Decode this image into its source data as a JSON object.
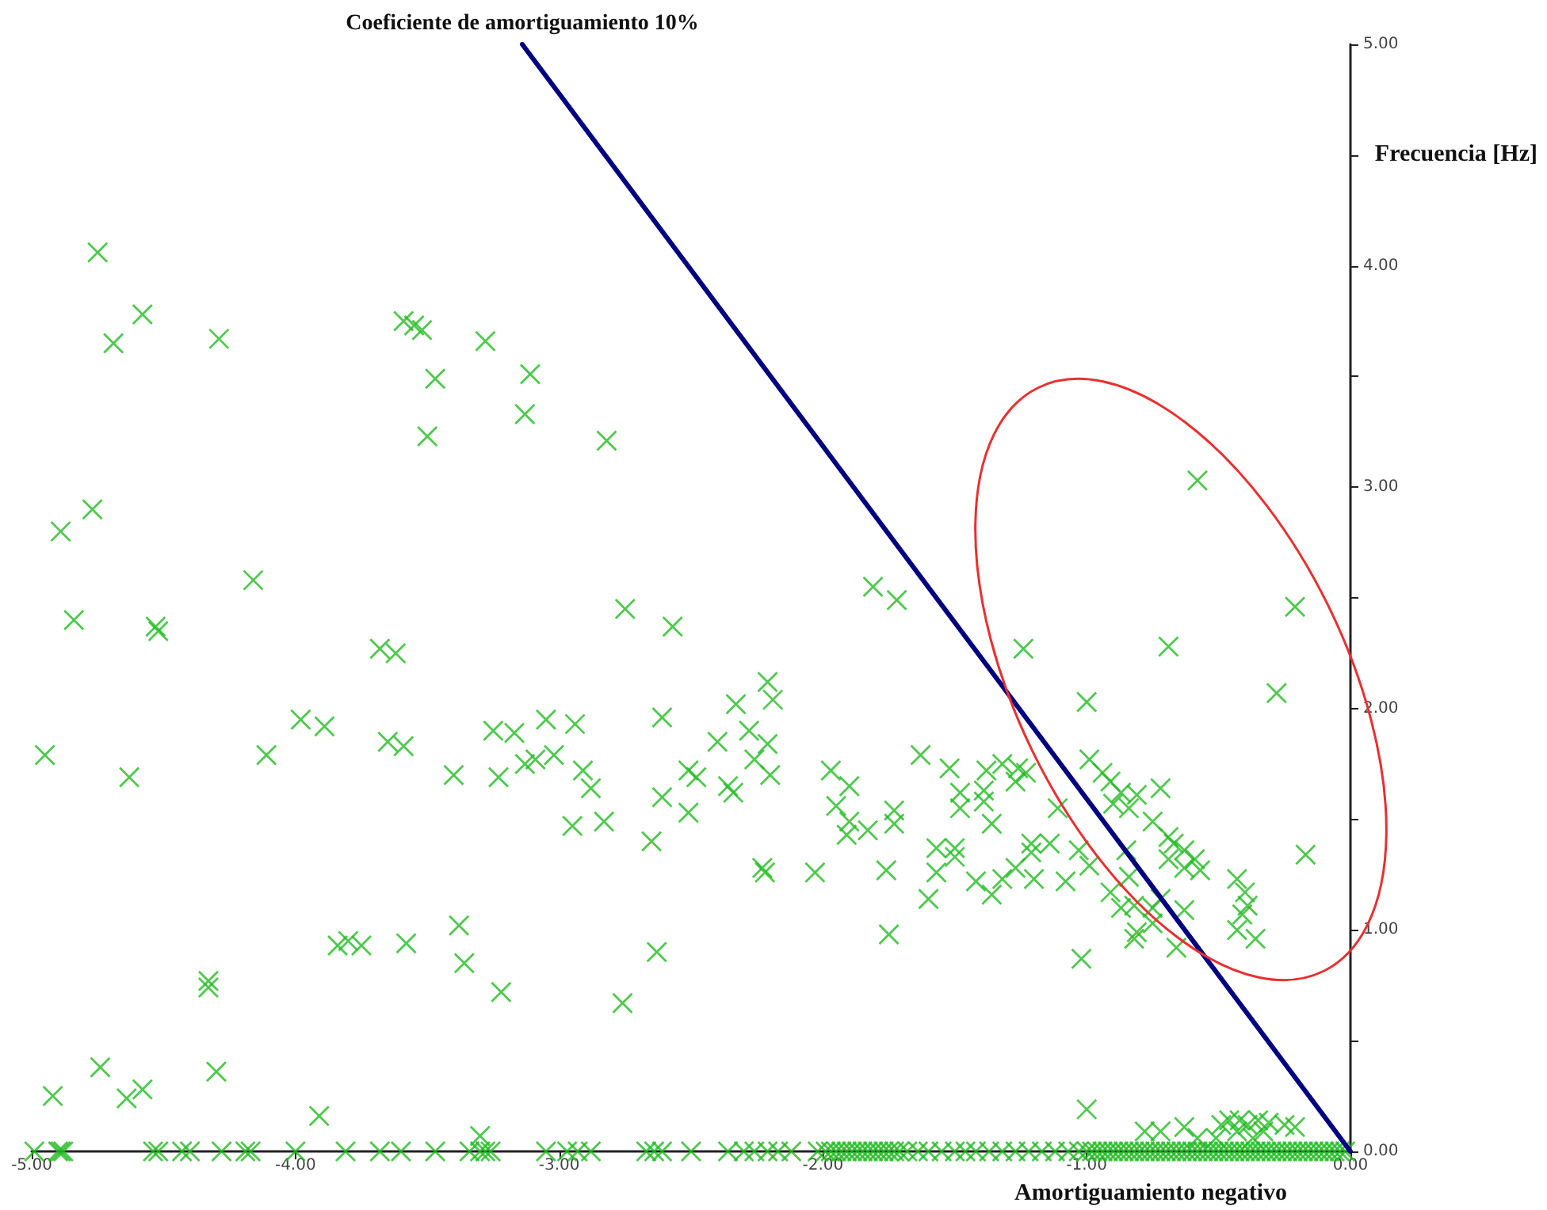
{
  "chart_data": {
    "type": "scatter",
    "xlabel": "Amortiguamiento negativo",
    "ylabel": "Frecuencia [Hz]",
    "xlim": [
      -5,
      0
    ],
    "ylim": [
      0,
      5
    ],
    "xticks": [
      {
        "value": -5,
        "label": "-5.00"
      },
      {
        "value": -4,
        "label": "-4.00"
      },
      {
        "value": -3,
        "label": "-3.00"
      },
      {
        "value": -2,
        "label": "-2.00"
      },
      {
        "value": -1,
        "label": "-1.00"
      },
      {
        "value": 0,
        "label": "0.00"
      }
    ],
    "yticks": [
      {
        "value": 0,
        "label": "0.00"
      },
      {
        "value": 0.5,
        "label": null
      },
      {
        "value": 1,
        "label": "1.00"
      },
      {
        "value": 1.5,
        "label": null
      },
      {
        "value": 2,
        "label": "2.00"
      },
      {
        "value": 2.5,
        "label": null
      },
      {
        "value": 3,
        "label": "3.00"
      },
      {
        "value": 3.5,
        "label": null
      },
      {
        "value": 4,
        "label": "4.00"
      },
      {
        "value": 4.5,
        "label": null
      },
      {
        "value": 5,
        "label": "5.00"
      }
    ],
    "grid": false,
    "legend": false,
    "marker": "cross",
    "series": [
      {
        "color": "#22bb22",
        "x": [
          -4.75,
          -4.69,
          -4.58,
          -4.29,
          -3.59,
          -3.55,
          -3.52,
          -3.47,
          -3.5,
          -3.28,
          -3.11,
          -3.13,
          -2.82,
          -4.77,
          -4.89,
          -4.84,
          -4.53,
          -4.52,
          -4.16,
          -3.68,
          -3.62,
          -4.95,
          -4.63,
          -4.11,
          -3.98,
          -3.89,
          -3.65,
          -3.59,
          -3.4,
          -3.23,
          -3.25,
          -3.17,
          -3.05,
          -2.94,
          -3.13,
          -3.09,
          -3.02,
          -2.91,
          -2.88,
          -2.95,
          -2.83,
          -2.65,
          -2.61,
          -2.61,
          -2.51,
          -2.51,
          -2.48,
          -2.4,
          -2.36,
          -2.34,
          -2.33,
          -2.28,
          -2.21,
          -2.19,
          -2.26,
          -2.21,
          -2.2,
          -2.23,
          -2.22,
          -2.03,
          -2.75,
          -2.57,
          -2.63,
          -2.76,
          -1.81,
          -1.72,
          -1.97,
          -1.9,
          -1.95,
          -1.9,
          -1.83,
          -1.91,
          -1.73,
          -1.73,
          -1.76,
          -1.75,
          -1.63,
          -1.52,
          -1.48,
          -1.48,
          -1.57,
          -1.57,
          -1.6,
          -1.5,
          -1.5,
          -1.38,
          -1.32,
          -1.27,
          -1.39,
          -1.39,
          -1.36,
          -1.42,
          -1.36,
          -1.32,
          -1.27,
          -0.58,
          -0.21,
          -1.24,
          -0.69,
          -0.28,
          -1.0,
          -0.17,
          -1.26,
          -1.23,
          -1.21,
          -1.21,
          -1.2,
          -1.08,
          -1.03,
          -0.99,
          -1.11,
          -1.14,
          -0.99,
          -0.94,
          -0.91,
          -0.87,
          -0.81,
          -0.72,
          -0.9,
          -0.84,
          -0.75,
          -0.69,
          -0.67,
          -0.63,
          -0.59,
          -0.69,
          -0.63,
          -0.57,
          -0.85,
          -0.91,
          -0.87,
          -0.82,
          -0.75,
          -0.72,
          -0.63,
          -0.81,
          -0.82,
          -0.75,
          -0.66,
          -0.43,
          -0.4,
          -0.39,
          -0.41,
          -0.43,
          -0.36,
          -1.02,
          -0.84,
          -4.92,
          -4.74,
          -4.64,
          -4.58,
          -4.3,
          -4.33,
          -4.33,
          -3.91,
          -3.84,
          -3.8,
          -3.75,
          -3.58,
          -3.38,
          -3.36,
          -3.22,
          -3.3,
          -1.0,
          -0.78,
          -0.72,
          -0.63,
          -0.58,
          -0.49,
          -0.46,
          -0.42,
          -0.39,
          -0.35,
          -0.31,
          -0.25,
          -0.21,
          -0.33,
          -0.37,
          -0.43,
          -0.51
        ],
        "values": [
          4.06,
          3.65,
          3.78,
          3.67,
          3.75,
          3.73,
          3.71,
          3.49,
          3.23,
          3.66,
          3.51,
          3.33,
          3.21,
          2.9,
          2.8,
          2.4,
          2.37,
          2.35,
          2.58,
          2.27,
          2.25,
          1.79,
          1.69,
          1.79,
          1.95,
          1.92,
          1.85,
          1.83,
          1.7,
          1.69,
          1.9,
          1.89,
          1.95,
          1.93,
          1.75,
          1.77,
          1.79,
          1.72,
          1.64,
          1.47,
          1.49,
          1.4,
          1.96,
          1.6,
          1.53,
          1.72,
          1.69,
          1.85,
          1.65,
          1.62,
          2.02,
          1.9,
          2.12,
          2.04,
          1.77,
          1.84,
          1.7,
          1.28,
          1.26,
          1.26,
          2.45,
          2.37,
          0.9,
          0.67,
          2.55,
          2.49,
          1.72,
          1.65,
          1.56,
          1.49,
          1.45,
          1.43,
          1.54,
          1.48,
          1.27,
          0.98,
          1.79,
          1.73,
          1.62,
          1.55,
          1.37,
          1.26,
          1.14,
          1.37,
          1.33,
          1.72,
          1.75,
          1.67,
          1.63,
          1.58,
          1.48,
          1.22,
          1.16,
          1.23,
          1.28,
          3.03,
          2.46,
          2.27,
          2.28,
          2.07,
          2.03,
          1.34,
          1.73,
          1.71,
          1.35,
          1.39,
          1.23,
          1.22,
          1.36,
          1.29,
          1.55,
          1.39,
          1.77,
          1.71,
          1.67,
          1.62,
          1.61,
          1.64,
          1.57,
          1.55,
          1.49,
          1.42,
          1.39,
          1.36,
          1.32,
          1.32,
          1.28,
          1.27,
          1.36,
          1.17,
          1.1,
          1.11,
          1.1,
          1.14,
          1.09,
          0.99,
          0.96,
          1.03,
          0.92,
          1.23,
          1.17,
          1.11,
          1.07,
          1.0,
          0.96,
          0.87,
          1.24,
          0.25,
          0.38,
          0.24,
          0.28,
          0.36,
          0.77,
          0.74,
          0.16,
          0.93,
          0.95,
          0.93,
          0.94,
          1.02,
          0.85,
          0.72,
          0.07,
          0.19,
          0.09,
          0.09,
          0.11,
          0.06,
          0.12,
          0.14,
          0.14,
          0.12,
          0.14,
          0.13,
          0.12,
          0.11,
          0.09,
          0.06,
          0.09,
          0.06
        ]
      },
      {
        "color": "#22bb22",
        "x": [
          -4.99,
          -4.9,
          -4.89,
          -4.88,
          -4.54,
          -4.52,
          -4.43,
          -4.4,
          -4.28,
          -4.19,
          -4.17,
          -4.0,
          -3.81,
          -3.68,
          -3.6,
          -3.47,
          -3.34,
          -3.3,
          -3.28,
          -3.26,
          -3.05,
          -2.97,
          -2.93,
          -2.88,
          -2.67,
          -2.64,
          -2.61,
          -2.5,
          -2.36,
          -2.3,
          -2.26,
          -2.21,
          -2.17,
          -2.12,
          -2.02,
          -1.99,
          -1.97,
          -1.95,
          -1.93,
          -1.91,
          -1.89,
          -1.87,
          -1.85,
          -1.83,
          -1.81,
          -1.79,
          -1.77,
          -1.75,
          -1.73,
          -1.71,
          -1.68,
          -1.64,
          -1.6,
          -1.55,
          -1.5,
          -1.46,
          -1.42,
          -1.37,
          -1.32,
          -1.27,
          -1.22,
          -1.17,
          -1.12,
          -1.07,
          -1.03,
          -1.0,
          -0.98,
          -0.96,
          -0.94,
          -0.92,
          -0.9,
          -0.88,
          -0.86,
          -0.84,
          -0.82,
          -0.8,
          -0.78,
          -0.76,
          -0.74,
          -0.72,
          -0.7,
          -0.68,
          -0.66,
          -0.64,
          -0.62,
          -0.6,
          -0.58,
          -0.56,
          -0.54,
          -0.52,
          -0.5,
          -0.48,
          -0.46,
          -0.44,
          -0.42,
          -0.4,
          -0.38,
          -0.36,
          -0.34,
          -0.32,
          -0.3,
          -0.28,
          -0.26,
          -0.24,
          -0.22,
          -0.2,
          -0.18,
          -0.16,
          -0.14,
          -0.12,
          -0.1,
          -0.08,
          -0.06,
          -0.04,
          -0.02
        ],
        "values": [
          0,
          0,
          0,
          0,
          0,
          0,
          0,
          0,
          0,
          0,
          0,
          0,
          0,
          0,
          0,
          0,
          0,
          0,
          0,
          0,
          0,
          0,
          0,
          0,
          0,
          0,
          0,
          0,
          0,
          0,
          0,
          0,
          0,
          0,
          0,
          0,
          0,
          0,
          0,
          0,
          0,
          0,
          0,
          0,
          0,
          0,
          0,
          0,
          0,
          0,
          0,
          0,
          0,
          0,
          0,
          0,
          0,
          0,
          0,
          0,
          0,
          0,
          0,
          0,
          0,
          0,
          0,
          0,
          0,
          0,
          0,
          0,
          0,
          0,
          0,
          0,
          0,
          0,
          0,
          0,
          0,
          0,
          0,
          0,
          0,
          0,
          0,
          0,
          0,
          0,
          0,
          0,
          0,
          0,
          0,
          0,
          0,
          0,
          0,
          0,
          0,
          0,
          0,
          0,
          0,
          0,
          0,
          0,
          0,
          0,
          0,
          0,
          0,
          0,
          0
        ]
      },
      {
        "type": "line",
        "name": "Coeficiente de amortiguamiento 10%",
        "color": "#000080",
        "marker": "none",
        "line_style": "solid",
        "x": [
          0,
          -3.14
        ],
        "values": [
          0,
          5
        ]
      }
    ]
  }
}
